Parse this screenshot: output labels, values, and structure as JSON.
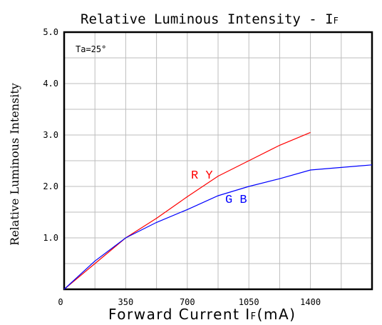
{
  "chart_data": {
    "type": "line",
    "title_main": "Relative Luminous Intensity - I",
    "title_sub": "F",
    "xlabel_main": "Forward Current I",
    "xlabel_sub": "F",
    "xlabel_unit": "(mA)",
    "ylabel": "Relative Luminous Intensity",
    "annotation": "Ta=25°",
    "xlim": [
      0,
      1750
    ],
    "ylim": [
      0,
      5
    ],
    "x_ticks": [
      {
        "value": 0,
        "label": "0"
      },
      {
        "value": 350,
        "label": "350"
      },
      {
        "value": 700,
        "label": "700"
      },
      {
        "value": 1050,
        "label": "1050"
      },
      {
        "value": 1400,
        "label": "1400"
      }
    ],
    "y_ticks": [
      {
        "value": 1,
        "label": "1.0"
      },
      {
        "value": 2,
        "label": "2.0"
      },
      {
        "value": 3,
        "label": "3.0"
      },
      {
        "value": 4,
        "label": "4.0"
      },
      {
        "value": 5,
        "label": "5.0"
      }
    ],
    "grid": true,
    "series": [
      {
        "name": "R Y",
        "color": "#ff0000",
        "x": [
          0,
          175,
          350,
          525,
          700,
          875,
          1050,
          1225,
          1400
        ],
        "y": [
          0,
          0.5,
          1.0,
          1.38,
          1.8,
          2.2,
          2.5,
          2.8,
          3.05
        ]
      },
      {
        "name": "G B",
        "color": "#0000ff",
        "x": [
          0,
          175,
          350,
          525,
          700,
          875,
          1050,
          1225,
          1400,
          1750
        ],
        "y": [
          0,
          0.55,
          1.0,
          1.3,
          1.55,
          1.82,
          2.0,
          2.15,
          2.32,
          2.42
        ]
      }
    ]
  }
}
